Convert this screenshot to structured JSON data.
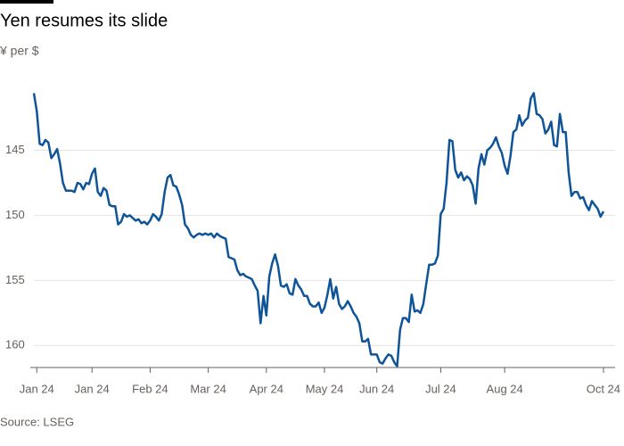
{
  "chart_data": {
    "type": "line",
    "title": "Yen resumes its slide",
    "subtitle": "¥ per $",
    "source": "Source: LSEG",
    "y_inverted": true,
    "grid": true,
    "ylim": [
      140.3,
      161.7
    ],
    "yticks": [
      145,
      150,
      155,
      160
    ],
    "categories": [
      null,
      "Jan 24",
      null,
      null,
      null,
      null,
      null,
      null,
      null,
      null,
      null,
      null,
      null,
      null,
      null,
      null,
      null,
      null,
      null,
      null,
      "Jan 24",
      null,
      null,
      null,
      null,
      null,
      null,
      null,
      null,
      null,
      null,
      null,
      null,
      null,
      null,
      null,
      null,
      null,
      null,
      null,
      "Feb 24",
      null,
      null,
      null,
      null,
      null,
      null,
      null,
      null,
      null,
      null,
      null,
      null,
      null,
      null,
      null,
      null,
      null,
      null,
      null,
      "Mar 24",
      null,
      null,
      null,
      null,
      null,
      null,
      null,
      null,
      null,
      null,
      null,
      null,
      null,
      null,
      null,
      null,
      null,
      null,
      null,
      "Apr 24",
      null,
      null,
      null,
      null,
      null,
      null,
      null,
      null,
      null,
      null,
      null,
      null,
      null,
      null,
      null,
      null,
      null,
      null,
      null,
      "May 24",
      null,
      null,
      null,
      null,
      null,
      null,
      null,
      null,
      null,
      null,
      null,
      null,
      null,
      null,
      null,
      null,
      null,
      "Jun 24",
      null,
      null,
      null,
      null,
      null,
      null,
      null,
      null,
      null,
      null,
      null,
      null,
      null,
      null,
      null,
      null,
      null,
      null,
      null,
      null,
      null,
      "Jul 24",
      null,
      null,
      null,
      null,
      null,
      null,
      null,
      null,
      null,
      null,
      null,
      null,
      null,
      null,
      null,
      null,
      null,
      null,
      null,
      null,
      null,
      "Aug 24",
      null,
      null,
      null,
      null,
      null,
      null,
      null,
      null,
      null,
      null,
      null,
      null,
      null,
      null,
      null,
      null,
      null,
      null,
      null,
      null,
      null,
      null,
      null,
      null,
      null,
      null,
      null,
      null,
      null,
      null,
      null,
      null,
      null,
      "Oct 24"
    ],
    "series": [
      {
        "name": "¥ per $",
        "color": "#0f5499",
        "values": [
          140.6,
          142.0,
          144.5,
          144.6,
          144.2,
          144.4,
          145.6,
          145.3,
          144.9,
          146.0,
          147.5,
          148.1,
          148.1,
          148.1,
          148.2,
          147.5,
          147.6,
          148.0,
          147.5,
          147.6,
          146.8,
          146.4,
          148.2,
          148.5,
          147.9,
          148.1,
          149.2,
          149.3,
          149.3,
          150.7,
          150.5,
          149.9,
          150.1,
          150.0,
          150.2,
          150.4,
          150.3,
          150.6,
          150.5,
          150.7,
          150.4,
          149.9,
          150.1,
          150.4,
          149.9,
          148.2,
          147.1,
          146.9,
          147.7,
          147.8,
          148.4,
          149.2,
          150.7,
          151.0,
          151.5,
          151.7,
          151.5,
          151.4,
          151.5,
          151.4,
          151.5,
          151.4,
          151.7,
          151.4,
          151.6,
          151.7,
          151.8,
          153.2,
          153.3,
          153.4,
          154.2,
          154.6,
          154.5,
          154.7,
          154.8,
          154.9,
          155.4,
          155.8,
          158.3,
          156.2,
          157.7,
          154.7,
          153.7,
          153.0,
          153.9,
          155.4,
          155.5,
          155.3,
          156.0,
          156.1,
          154.9,
          155.4,
          155.7,
          156.2,
          156.2,
          156.8,
          157.0,
          157.0,
          156.7,
          157.5,
          157.1,
          156.1,
          154.9,
          156.4,
          155.5,
          156.8,
          157.2,
          157.0,
          156.6,
          157.0,
          157.5,
          157.8,
          158.3,
          159.7,
          159.7,
          159.5,
          160.7,
          160.7,
          160.7,
          161.3,
          161.4,
          161.0,
          160.7,
          160.8,
          161.3,
          161.6,
          158.8,
          157.9,
          157.9,
          158.2,
          156.1,
          157.4,
          157.3,
          157.5,
          156.8,
          155.3,
          153.8,
          153.8,
          153.7,
          153.1,
          149.9,
          149.5,
          147.5,
          144.2,
          144.3,
          146.5,
          147.1,
          146.7,
          147.3,
          147.0,
          147.2,
          147.7,
          149.1,
          146.4,
          145.3,
          146.1,
          145.0,
          144.8,
          144.5,
          144.0,
          144.7,
          145.2,
          146.2,
          146.8,
          145.4,
          143.6,
          143.4,
          142.3,
          143.1,
          142.7,
          142.5,
          141.0,
          140.6,
          142.2,
          142.3,
          142.6,
          143.7,
          143.4,
          142.8,
          144.6,
          144.7,
          142.2,
          143.6,
          143.6,
          146.7,
          148.5,
          148.2,
          148.2,
          148.7,
          148.6,
          149.2,
          149.6,
          148.9,
          149.2,
          149.5,
          150.1,
          149.7
        ]
      }
    ]
  }
}
